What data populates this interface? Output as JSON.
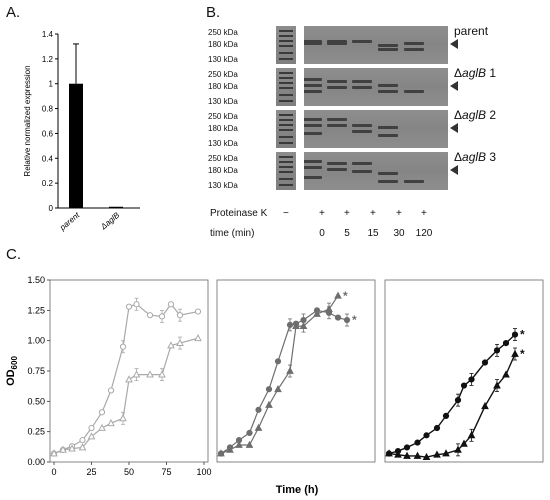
{
  "panels": {
    "a": "A.",
    "b": "B.",
    "c": "C."
  },
  "colors": {
    "light": "#a9a9a9",
    "mid": "#6e6e6e",
    "dark": "#111111",
    "bar": "#000000"
  },
  "panel_b": {
    "mw_labels": [
      "250 kDa",
      "180 kDa",
      "130 kDa"
    ],
    "strains": [
      {
        "prefix": "",
        "gene": "parent",
        "suffix": ""
      },
      {
        "prefix": "Δ",
        "gene": "aglB",
        "suffix": " 1"
      },
      {
        "prefix": "Δ",
        "gene": "aglB",
        "suffix": " 2"
      },
      {
        "prefix": "Δ",
        "gene": "aglB",
        "suffix": " 3"
      }
    ],
    "proteinase_label": "Proteinase K",
    "proteinase_values": [
      "−",
      "+",
      "+",
      "+",
      "+",
      "+"
    ],
    "time_label": "time (min)",
    "time_values": [
      "0",
      "5",
      "15",
      "30",
      "120"
    ]
  },
  "chart_data": [
    {
      "type": "bar",
      "categories": [
        "parent",
        "ΔaglB"
      ],
      "values": [
        1.0,
        0.01
      ],
      "errors": [
        0.32,
        0.005
      ],
      "ylabel": "Relative normalized expression",
      "ylim": [
        0,
        1.4
      ],
      "yticks": [
        "0",
        "0.2",
        "0.4",
        "0.6",
        "0.8",
        "1",
        "1.2",
        "1.4"
      ]
    },
    {
      "type": "line",
      "ylabel_main": "OD",
      "ylabel_sub": "600",
      "xlabel": "Time (h)",
      "ylim": [
        0,
        1.5
      ],
      "yticks": [
        "0.00",
        "0.25",
        "0.50",
        "0.75",
        "1.00",
        "1.25",
        "1.50"
      ],
      "xticks": [
        "0",
        "25",
        "50",
        "75",
        "100"
      ],
      "panels": [
        {
          "series": [
            {
              "marker": "circle",
              "color": "light",
              "x": [
                0,
                6,
                12,
                19,
                25,
                32,
                38,
                46,
                50,
                55,
                64,
                72,
                78,
                84,
                96
              ],
              "y": [
                0.07,
                0.1,
                0.13,
                0.18,
                0.28,
                0.41,
                0.59,
                0.95,
                1.28,
                1.3,
                1.21,
                1.2,
                1.3,
                1.21,
                1.24
              ]
            },
            {
              "marker": "triangle",
              "color": "light",
              "x": [
                0,
                6,
                12,
                19,
                25,
                32,
                38,
                46,
                50,
                55,
                64,
                72,
                78,
                84,
                96
              ],
              "y": [
                0.07,
                0.1,
                0.11,
                0.12,
                0.21,
                0.28,
                0.32,
                0.36,
                0.68,
                0.72,
                0.72,
                0.72,
                0.96,
                0.98,
                1.02
              ]
            }
          ]
        },
        {
          "series": [
            {
              "marker": "circle",
              "color": "mid",
              "label": "*",
              "x": [
                0,
                6,
                12,
                19,
                25,
                32,
                38,
                46,
                50,
                55,
                64,
                72,
                78,
                84
              ],
              "y": [
                0.07,
                0.12,
                0.18,
                0.24,
                0.43,
                0.6,
                0.83,
                1.13,
                1.14,
                1.17,
                1.25,
                1.23,
                1.19,
                1.17
              ]
            },
            {
              "marker": "triangle",
              "color": "mid",
              "label": "*",
              "x": [
                0,
                6,
                12,
                19,
                25,
                32,
                38,
                46,
                50,
                55,
                64,
                72,
                78
              ],
              "y": [
                0.07,
                0.1,
                0.14,
                0.14,
                0.28,
                0.47,
                0.6,
                0.75,
                1.12,
                1.12,
                1.22,
                1.26,
                1.37
              ]
            }
          ]
        },
        {
          "series": [
            {
              "marker": "circle",
              "color": "dark",
              "label": "*",
              "x": [
                0,
                6,
                12,
                19,
                25,
                32,
                38,
                46,
                50,
                55,
                64,
                72,
                78,
                84
              ],
              "y": [
                0.07,
                0.09,
                0.12,
                0.16,
                0.22,
                0.28,
                0.38,
                0.51,
                0.63,
                0.68,
                0.82,
                0.92,
                0.98,
                1.05
              ]
            },
            {
              "marker": "triangle",
              "color": "dark",
              "label": "*",
              "x": [
                0,
                6,
                12,
                19,
                25,
                32,
                38,
                46,
                50,
                55,
                64,
                72,
                78,
                84
              ],
              "y": [
                0.07,
                0.06,
                0.05,
                0.05,
                0.04,
                0.06,
                0.07,
                0.1,
                0.15,
                0.22,
                0.46,
                0.63,
                0.72,
                0.89
              ]
            }
          ]
        }
      ]
    }
  ]
}
